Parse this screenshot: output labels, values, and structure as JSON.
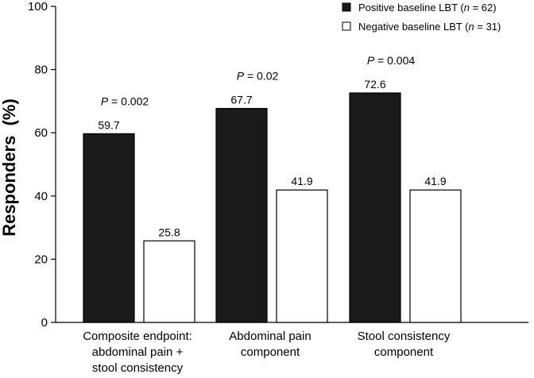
{
  "chart_data": {
    "type": "bar",
    "title": "",
    "ylabel": "Responders  (%)",
    "xlabel": "",
    "ylim": [
      0,
      100
    ],
    "yticks": [
      "0",
      "20",
      "40",
      "60",
      "80",
      "100"
    ],
    "categories": [
      [
        "Composite endpoint:",
        "abdominal pain +",
        "stool consistency"
      ],
      [
        "Abdominal pain",
        "component"
      ],
      [
        "Stool consistency",
        "component"
      ]
    ],
    "series": [
      {
        "name": "Positive baseline LBT",
        "n_label": "n",
        "n_value": "= 62",
        "fill": "#1a1a1a",
        "values": [
          59.7,
          67.7,
          72.6
        ]
      },
      {
        "name": "Negative baseline LBT",
        "n_label": "n",
        "n_value": "= 31",
        "fill": "#ffffff",
        "values": [
          25.8,
          41.9,
          41.9
        ]
      }
    ],
    "value_labels": [
      [
        "59.7",
        "67.7",
        "72.6"
      ],
      [
        "25.8",
        "41.9",
        "41.9"
      ]
    ],
    "p_values": [
      {
        "prefix": "P",
        "text": " = 0.002"
      },
      {
        "prefix": "P",
        "text": " = 0.02"
      },
      {
        "prefix": "P",
        "text": " = 0.004"
      }
    ],
    "legend_position": "top-right"
  }
}
